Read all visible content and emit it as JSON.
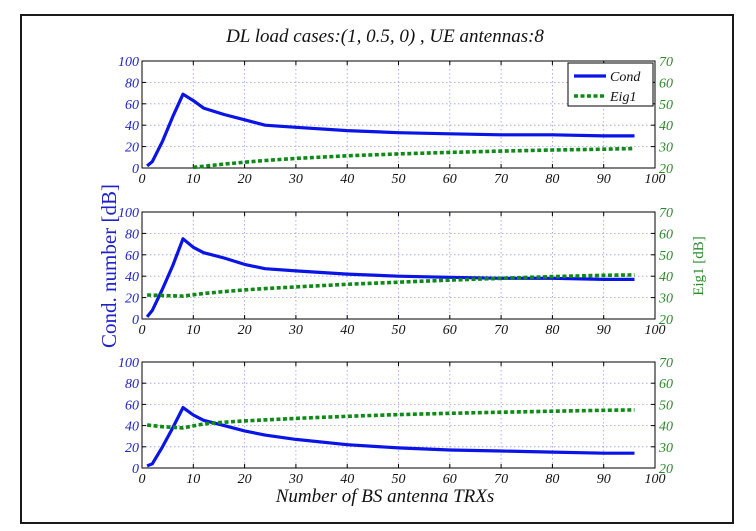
{
  "chart_data": {
    "type": "line",
    "title": "DL load cases:(1, 0.5, 0) , UE antennas:8",
    "xlabel": "Number of BS antenna TRXs",
    "ylabel_left": "Cond. number [dB]",
    "ylabel_right": "Eig1 [dB]",
    "xlim": [
      0,
      100
    ],
    "ylim_left": [
      0,
      100
    ],
    "ylim_right": [
      20,
      70
    ],
    "xticks": [
      "0",
      "10",
      "20",
      "30",
      "40",
      "50",
      "60",
      "70",
      "80",
      "90",
      "100"
    ],
    "yticks_left": [
      "0",
      "20",
      "40",
      "60",
      "80",
      "100"
    ],
    "yticks_right": [
      "20",
      "30",
      "40",
      "50",
      "60",
      "70"
    ],
    "grid": true,
    "legend": {
      "position": "top-right",
      "entries": [
        "Cond",
        "Eig1"
      ]
    },
    "colors": {
      "cond": "#0a14e6",
      "eig": "#0f8a16",
      "left_axis": "#1e22cc",
      "right_axis": "#2a8a2a",
      "grid": "#9a9aee"
    },
    "panels": [
      {
        "series": [
          {
            "name": "Cond",
            "x": [
              1,
              2,
              4,
              6,
              8,
              10,
              12,
              16,
              20,
              24,
              30,
              40,
              50,
              60,
              70,
              80,
              90,
              96
            ],
            "y": [
              2,
              6,
              25,
              48,
              69,
              63,
              56,
              50,
              45,
              40,
              38,
              35,
              33,
              32,
              31,
              31,
              30,
              30
            ]
          },
          {
            "name": "Eig1",
            "x": [
              10,
              12,
              16,
              20,
              24,
              30,
              40,
              50,
              60,
              70,
              80,
              90,
              96
            ],
            "y": [
              20.3,
              20.8,
              21.8,
              22.7,
              23.5,
              24.5,
              25.7,
              26.6,
              27.3,
              27.9,
              28.4,
              28.8,
              29.1
            ]
          }
        ]
      },
      {
        "series": [
          {
            "name": "Cond",
            "x": [
              1,
              2,
              4,
              6,
              8,
              10,
              12,
              16,
              20,
              24,
              30,
              40,
              50,
              60,
              70,
              80,
              90,
              96
            ],
            "y": [
              2,
              8,
              28,
              50,
              75,
              67,
              62,
              57,
              51,
              47,
              45,
              42,
              40,
              39,
              38,
              38,
              37,
              37
            ]
          },
          {
            "name": "Eig1",
            "x": [
              1,
              4,
              8,
              12,
              16,
              20,
              24,
              30,
              40,
              50,
              60,
              70,
              80,
              90,
              96
            ],
            "y": [
              31.2,
              31.0,
              30.7,
              31.9,
              32.8,
              33.6,
              34.2,
              35.0,
              36.2,
              37.2,
              38.2,
              39.0,
              39.8,
              40.4,
              40.6
            ]
          }
        ]
      },
      {
        "series": [
          {
            "name": "Cond",
            "x": [
              1,
              2,
              4,
              6,
              8,
              10,
              12,
              16,
              20,
              24,
              30,
              40,
              50,
              60,
              70,
              80,
              90,
              96
            ],
            "y": [
              2,
              4,
              20,
              38,
              57,
              50,
              45,
              40,
              35,
              31,
              27,
              22,
              19,
              17,
              16,
              15,
              14,
              14
            ]
          },
          {
            "name": "Eig1",
            "x": [
              1,
              4,
              8,
              12,
              16,
              20,
              24,
              30,
              40,
              50,
              60,
              70,
              80,
              90,
              96
            ],
            "y": [
              40.3,
              39.5,
              38.9,
              40.8,
              41.6,
              42.2,
              42.7,
              43.4,
              44.4,
              45.2,
              45.8,
              46.3,
              46.8,
              47.2,
              47.4
            ]
          }
        ]
      }
    ]
  }
}
